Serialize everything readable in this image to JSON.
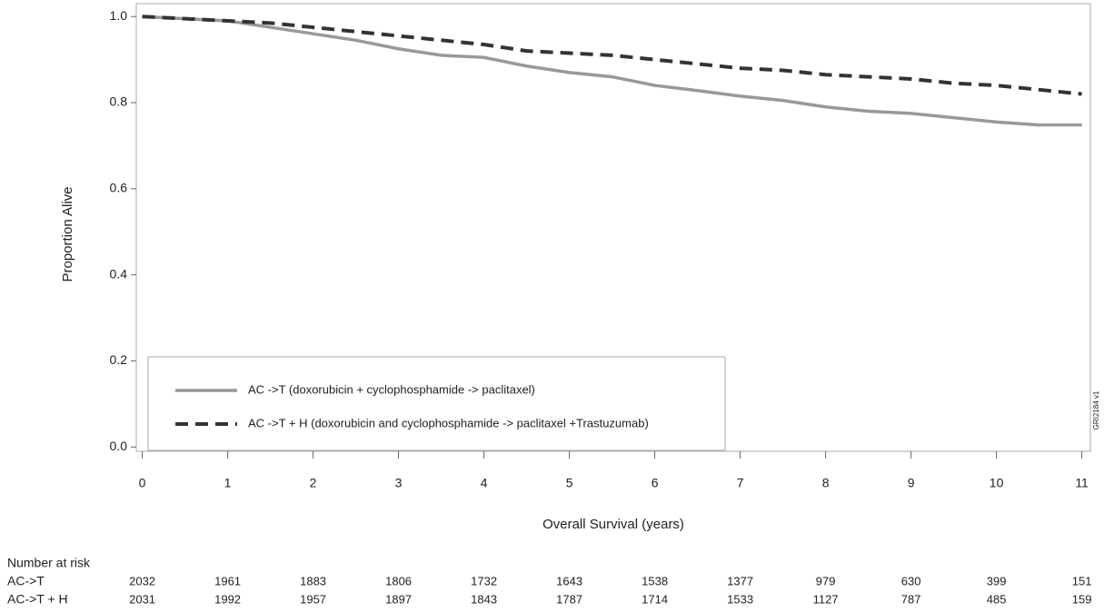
{
  "chart_data": {
    "type": "line",
    "x_label": "Overall Survival (years)",
    "y_label": "Proportion Alive",
    "side_note": "GRI2184 v1",
    "x": [
      0,
      0.5,
      1,
      1.5,
      2,
      2.5,
      3,
      3.5,
      4,
      4.5,
      5,
      5.5,
      6,
      6.5,
      7,
      7.5,
      8,
      8.5,
      9,
      9.5,
      10,
      10.5,
      11
    ],
    "series": [
      {
        "name": "AC ->T (doxorubicin + cyclophosphamide -> paclitaxel)",
        "color": "#999999",
        "linestyle": "solid",
        "values": [
          1.0,
          0.995,
          0.99,
          0.975,
          0.96,
          0.945,
          0.925,
          0.91,
          0.905,
          0.885,
          0.87,
          0.86,
          0.84,
          0.828,
          0.815,
          0.805,
          0.79,
          0.78,
          0.775,
          0.765,
          0.755,
          0.748,
          0.748
        ]
      },
      {
        "name": "AC ->T + H (doxorubicin and cyclophosphamide -> paclitaxel +Trastuzumab)",
        "color": "#333333",
        "linestyle": "dashed",
        "values": [
          1.0,
          0.995,
          0.99,
          0.985,
          0.975,
          0.965,
          0.955,
          0.945,
          0.935,
          0.92,
          0.915,
          0.91,
          0.9,
          0.89,
          0.88,
          0.875,
          0.865,
          0.86,
          0.855,
          0.845,
          0.84,
          0.83,
          0.82
        ]
      }
    ],
    "xlim": [
      -0.07,
      11.1
    ],
    "xticks": [
      0,
      1,
      2,
      3,
      4,
      5,
      6,
      7,
      8,
      9,
      10,
      11
    ],
    "ylim": [
      -0.01,
      1.03
    ],
    "yticks": [
      {
        "value": 0,
        "label": "0.0"
      },
      0.2,
      0.4,
      0.6,
      0.8,
      {
        "value": 1,
        "label": "1.0"
      }
    ],
    "legend": "lower left",
    "risk_table": {
      "title": "Number at risk",
      "rows": [
        {
          "label": "AC->T",
          "values": [
            2032,
            1961,
            1883,
            1806,
            1732,
            1643,
            1538,
            1377,
            979,
            630,
            399,
            151
          ]
        },
        {
          "label": "AC->T + H",
          "values": [
            2031,
            1992,
            1957,
            1897,
            1843,
            1787,
            1714,
            1533,
            1127,
            787,
            485,
            159
          ]
        }
      ]
    }
  }
}
